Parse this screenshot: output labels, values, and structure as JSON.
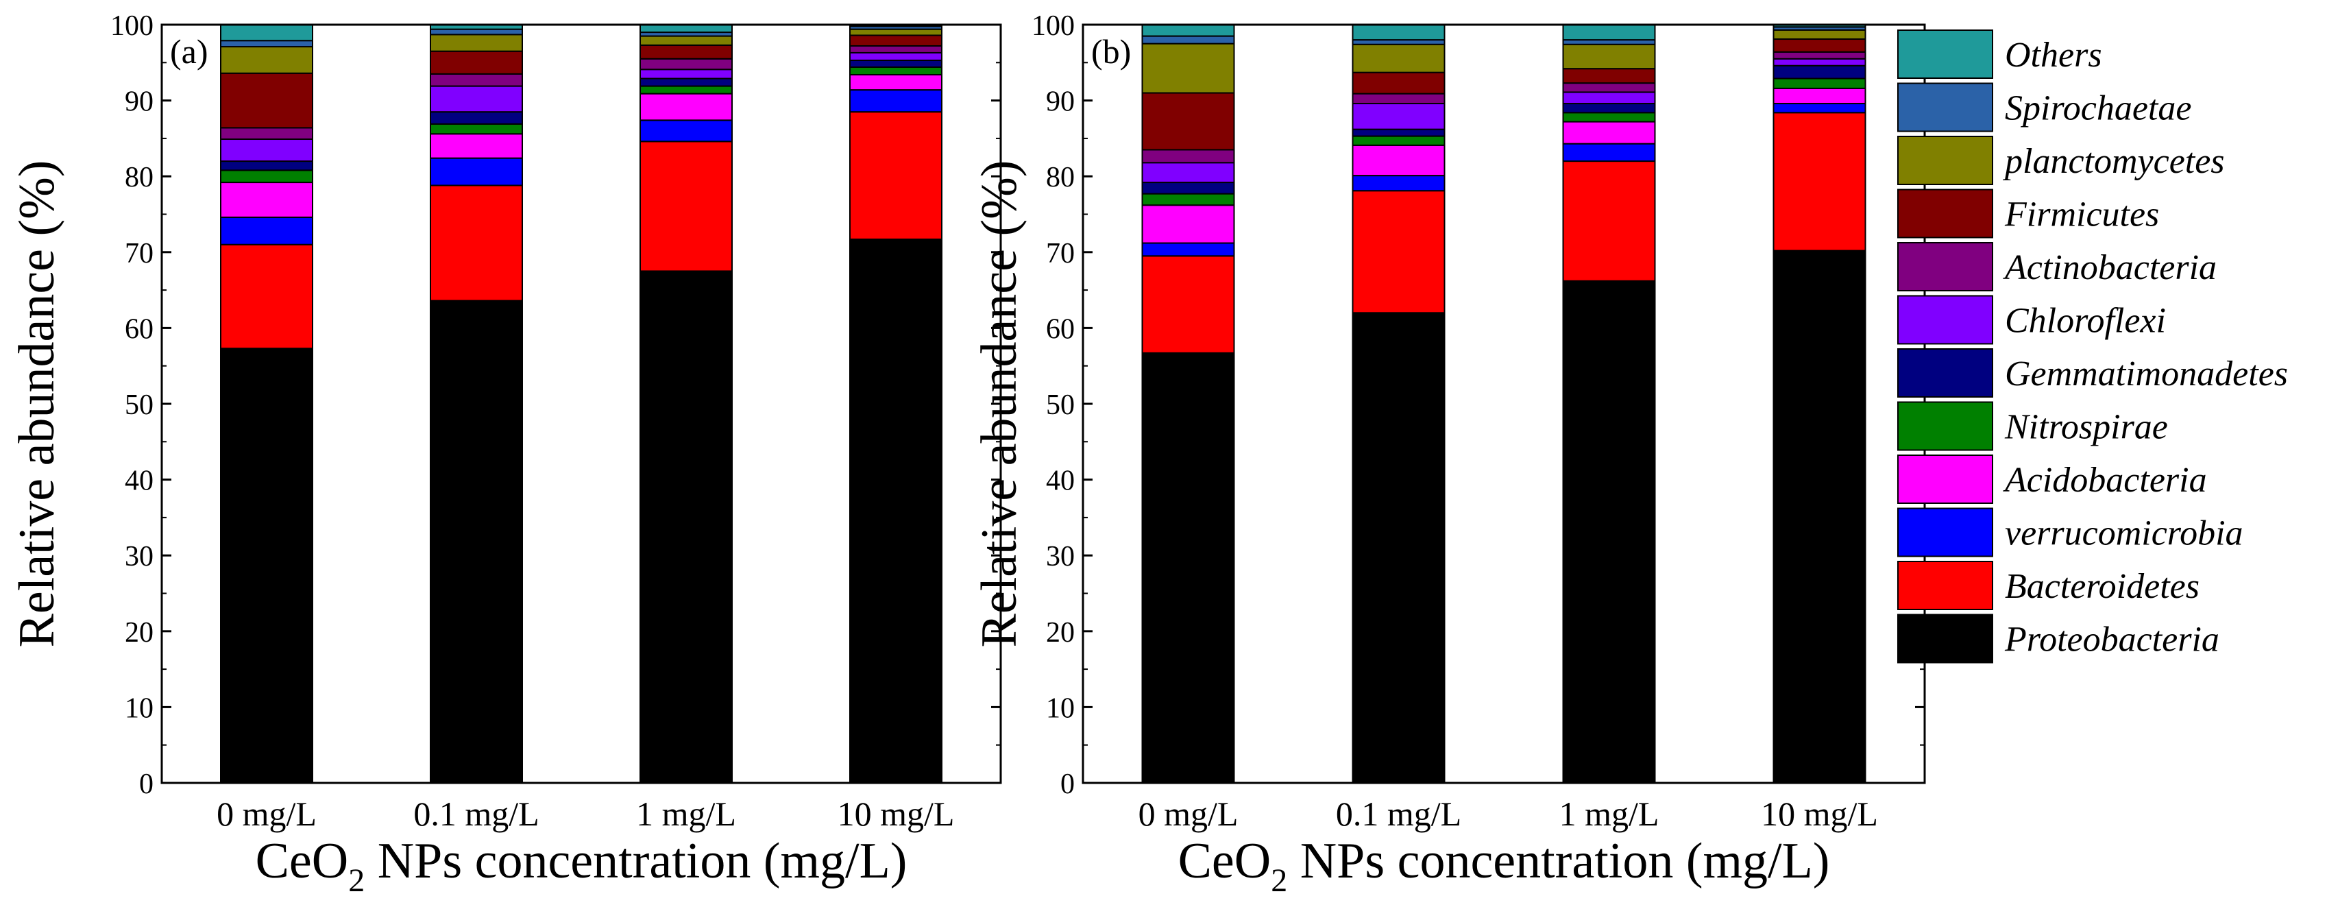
{
  "chart_data": {
    "type": "stacked-bar",
    "legend_position": "right",
    "legend": {
      "items": [
        {
          "label": "Others",
          "color": "#1f9a9a"
        },
        {
          "label": "Spirochaetae",
          "color": "#2b62a8"
        },
        {
          "label": "planctomycetes",
          "color": "#808000"
        },
        {
          "label": "Firmicutes",
          "color": "#800000"
        },
        {
          "label": "Actinobacteria",
          "color": "#800080"
        },
        {
          "label": "Chloroflexi",
          "color": "#8000ff"
        },
        {
          "label": "Gemmatimonadetes",
          "color": "#000080"
        },
        {
          "label": "Nitrospirae",
          "color": "#008000"
        },
        {
          "label": "Acidobacteria",
          "color": "#ff00ff"
        },
        {
          "label": "verrucomicrobia",
          "color": "#0000ff"
        },
        {
          "label": "Bacteroidetes",
          "color": "#ff0000"
        },
        {
          "label": "Proteobacteria",
          "color": "#000000"
        }
      ]
    },
    "panels": [
      {
        "label": "(a)",
        "xlabel_main": "CeO",
        "xlabel_sub": "2",
        "xlabel_rest": " NPs concentration (mg/L)",
        "ylabel": "Relative abundance (%)",
        "ylim": [
          0,
          100
        ],
        "yticks": [
          "0",
          "10",
          "20",
          "30",
          "40",
          "50",
          "60",
          "70",
          "80",
          "90",
          "100"
        ],
        "categories": [
          "0 mg/L",
          "0.1 mg/L",
          "1 mg/L",
          "10 mg/L"
        ],
        "series": [
          {
            "name": "Proteobacteria",
            "values": [
              57.3,
              63.6,
              67.5,
              71.7
            ]
          },
          {
            "name": "Bacteroidetes",
            "values": [
              13.7,
              15.2,
              17.1,
              16.8
            ]
          },
          {
            "name": "verrucomicrobia",
            "values": [
              3.6,
              3.6,
              2.8,
              2.9
            ]
          },
          {
            "name": "Acidobacteria",
            "values": [
              4.6,
              3.2,
              3.5,
              2.0
            ]
          },
          {
            "name": "Nitrospirae",
            "values": [
              1.6,
              1.3,
              1.0,
              1.0
            ]
          },
          {
            "name": "Gemmatimonadetes",
            "values": [
              1.2,
              1.6,
              1.0,
              0.9
            ]
          },
          {
            "name": "Chloroflexi",
            "values": [
              2.9,
              3.4,
              1.2,
              1.0
            ]
          },
          {
            "name": "Actinobacteria",
            "values": [
              1.5,
              1.6,
              1.4,
              0.9
            ]
          },
          {
            "name": "Firmicutes",
            "values": [
              7.2,
              3.0,
              1.8,
              1.4
            ]
          },
          {
            "name": "planctomycetes",
            "values": [
              3.5,
              2.2,
              1.2,
              0.8
            ]
          },
          {
            "name": "Spirochaetae",
            "values": [
              0.8,
              0.7,
              0.5,
              0.4
            ]
          },
          {
            "name": "Others",
            "values": [
              2.1,
              0.6,
              1.0,
              0.2
            ]
          }
        ]
      },
      {
        "label": "(b)",
        "xlabel_main": "CeO",
        "xlabel_sub": "2",
        "xlabel_rest": " NPs concentration (mg/L)",
        "ylabel": "Relative abundance (%)",
        "ylim": [
          0,
          100
        ],
        "yticks": [
          "0",
          "10",
          "20",
          "30",
          "40",
          "50",
          "60",
          "70",
          "80",
          "90",
          "100"
        ],
        "categories": [
          "0 mg/L",
          "0.1 mg/L",
          "1 mg/L",
          "10 mg/L"
        ],
        "series": [
          {
            "name": "Proteobacteria",
            "values": [
              56.7,
              62.0,
              66.2,
              70.2
            ]
          },
          {
            "name": "Bacteroidetes",
            "values": [
              12.8,
              16.1,
              15.8,
              18.2
            ]
          },
          {
            "name": "verrucomicrobia",
            "values": [
              1.7,
              2.0,
              2.3,
              1.2
            ]
          },
          {
            "name": "Acidobacteria",
            "values": [
              5.0,
              4.0,
              2.9,
              2.0
            ]
          },
          {
            "name": "Nitrospirae",
            "values": [
              1.5,
              1.2,
              1.2,
              1.3
            ]
          },
          {
            "name": "Gemmatimonadetes",
            "values": [
              1.5,
              0.9,
              1.2,
              1.7
            ]
          },
          {
            "name": "Chloroflexi",
            "values": [
              2.6,
              3.4,
              1.5,
              0.9
            ]
          },
          {
            "name": "Actinobacteria",
            "values": [
              1.7,
              1.3,
              1.2,
              0.9
            ]
          },
          {
            "name": "Firmicutes",
            "values": [
              7.5,
              2.8,
              1.9,
              1.7
            ]
          },
          {
            "name": "planctomycetes",
            "values": [
              6.5,
              3.7,
              3.2,
              1.2
            ]
          },
          {
            "name": "Spirochaetae",
            "values": [
              1.0,
              0.6,
              0.6,
              0.4
            ]
          },
          {
            "name": "Others",
            "values": [
              1.5,
              2.0,
              2.0,
              0.3
            ]
          }
        ]
      }
    ]
  }
}
